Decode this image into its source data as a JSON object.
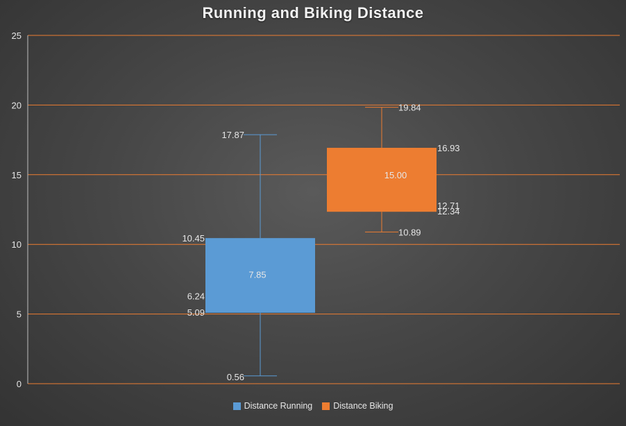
{
  "chart_data": {
    "type": "box",
    "title": "Running and Biking Distance",
    "xlabel": "",
    "ylabel": "",
    "ylim": [
      0,
      25
    ],
    "yticks": [
      0,
      5,
      10,
      15,
      20,
      25
    ],
    "grid": true,
    "legend_position": "bottom",
    "series": [
      {
        "name": "Distance Running",
        "color": "#5b9bd5",
        "min": 0.56,
        "q1": 5.09,
        "median": 6.24,
        "mean": 7.85,
        "q3": 10.45,
        "max": 17.87,
        "labels": {
          "min": "0.56",
          "q1": "5.09",
          "median": "6.24",
          "mean": "7.85",
          "q3": "10.45",
          "max": "17.87"
        }
      },
      {
        "name": "Distance Biking",
        "color": "#ed7d31",
        "min": 10.89,
        "q1": 12.34,
        "median": 12.71,
        "mean": 15.0,
        "q3": 16.93,
        "max": 19.84,
        "labels": {
          "min": "10.89",
          "q1": "12.34",
          "median": "12.71",
          "mean": "15.00",
          "q3": "16.93",
          "max": "19.84"
        }
      }
    ],
    "gridline_color": "#ed7d31",
    "axis_color": "#bfbfbf"
  }
}
